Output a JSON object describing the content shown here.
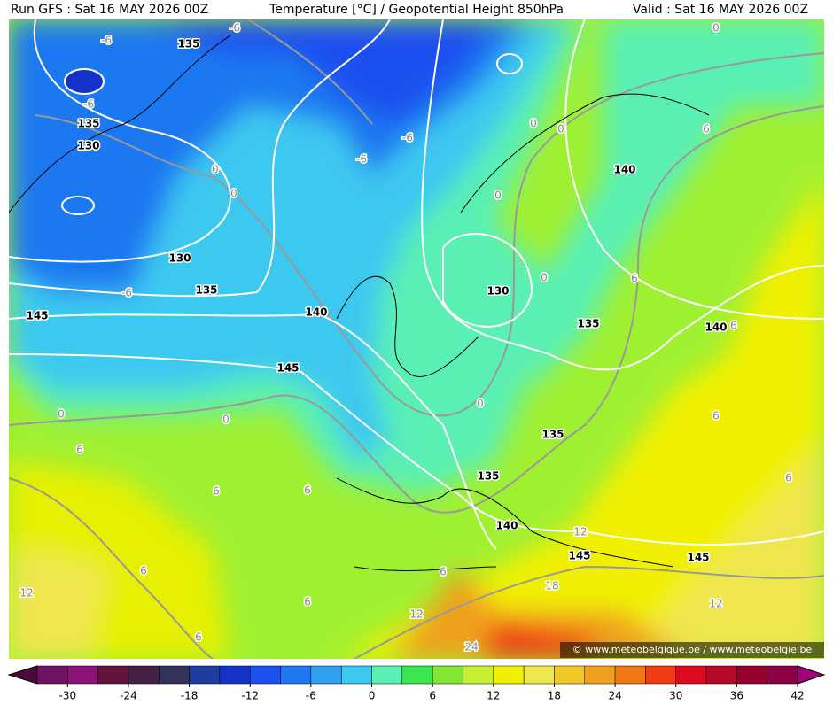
{
  "header": {
    "left": "Run GFS : Sat 16 MAY 2026 00Z",
    "center": "Temperature [°C] / Geopotential Height 850hPa",
    "right": "Valid : Sat 16 MAY 2026 00Z"
  },
  "map": {
    "contour_labels": [
      "135",
      "-6",
      "-6",
      "-6",
      "135",
      "130",
      "0",
      "0",
      "-6",
      "-6",
      "0",
      "0",
      "0",
      "140",
      "6",
      "0",
      "130",
      "135",
      "-6",
      "145",
      "140",
      "130",
      "0",
      "6",
      "135",
      "140",
      "6",
      "145",
      "0",
      "0",
      "0",
      "6",
      "135",
      "6",
      "6",
      "135",
      "6",
      "6",
      "140",
      "12",
      "145",
      "145",
      "6",
      "6",
      "18",
      "12",
      "6",
      "12",
      "12",
      "6",
      "24"
    ],
    "credit": "© www.meteobelgique.be / www.meteobelgie.be"
  },
  "colorbar": {
    "labels": [
      "-30",
      "-24",
      "-18",
      "-12",
      "-6",
      "0",
      "6",
      "12",
      "18",
      "24",
      "30",
      "36",
      "42"
    ],
    "colors": [
      "#4b0a3c",
      "#6e1262",
      "#8c1478",
      "#64143c",
      "#461e46",
      "#32325a",
      "#1e3ca0",
      "#1432c8",
      "#1e50f0",
      "#1e78f0",
      "#32a0f0",
      "#3cc8f0",
      "#5af0b4",
      "#3ce650",
      "#82e632",
      "#c8f032",
      "#f0f000",
      "#f0e650",
      "#f0c828",
      "#f0a01e",
      "#f07814",
      "#f03c14",
      "#dc0a1e",
      "#b40a28",
      "#96002d",
      "#8c0046",
      "#a00078"
    ]
  }
}
